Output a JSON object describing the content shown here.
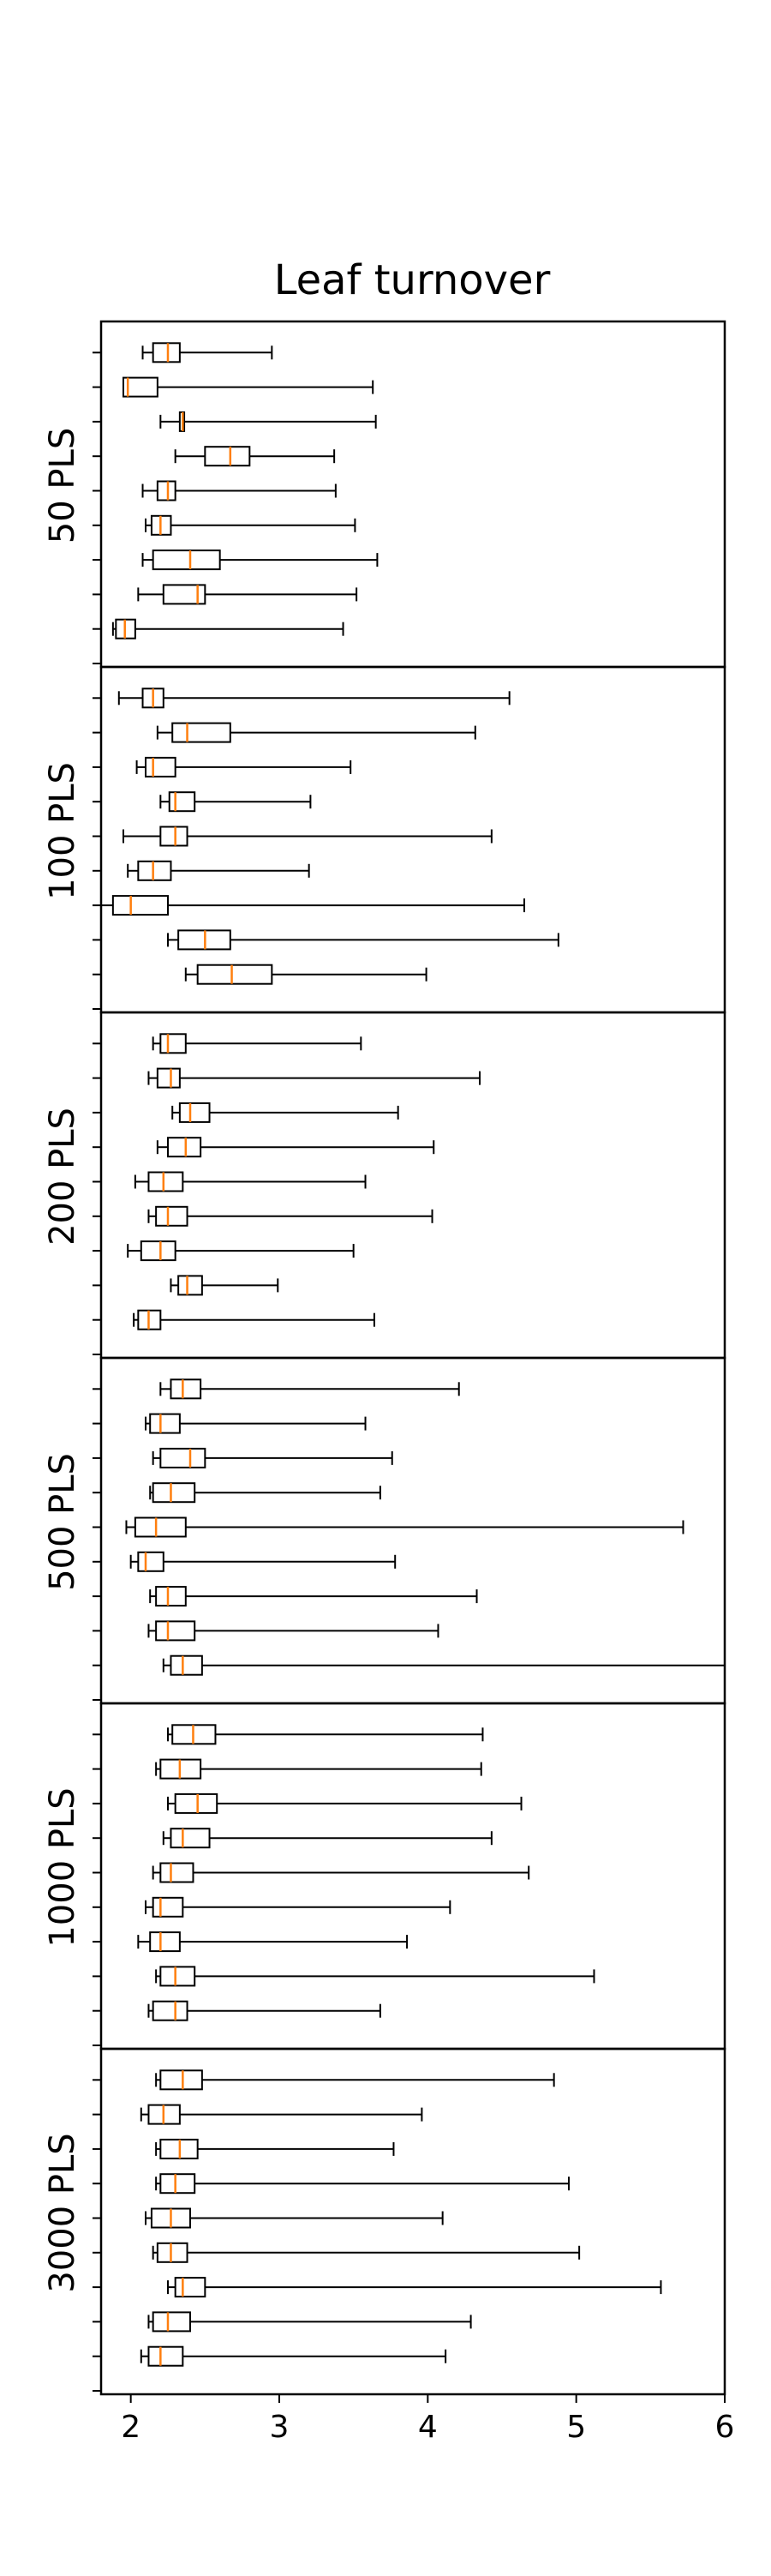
{
  "chart_data": {
    "type": "boxplot",
    "title": "Leaf turnover",
    "xlim": [
      1.8,
      6.0
    ],
    "x_ticks": [
      2,
      3,
      4,
      5,
      6
    ],
    "x_tick_labels": [
      "2",
      "3",
      "4",
      "5",
      "6"
    ],
    "panels": [
      {
        "label": "50 PLS",
        "boxes": [
          {
            "min": 2.08,
            "q1": 2.15,
            "median": 2.25,
            "q3": 2.33,
            "max": 2.95
          },
          {
            "min": 1.95,
            "q1": 1.95,
            "median": 1.98,
            "q3": 2.18,
            "max": 3.63
          },
          {
            "min": 2.2,
            "q1": 2.33,
            "median": 2.35,
            "q3": 2.36,
            "max": 3.65
          },
          {
            "min": 2.3,
            "q1": 2.5,
            "median": 2.67,
            "q3": 2.8,
            "max": 3.37
          },
          {
            "min": 2.08,
            "q1": 2.18,
            "median": 2.25,
            "q3": 2.3,
            "max": 3.38
          },
          {
            "min": 2.1,
            "q1": 2.14,
            "median": 2.2,
            "q3": 2.27,
            "max": 3.51
          },
          {
            "min": 2.08,
            "q1": 2.15,
            "median": 2.4,
            "q3": 2.6,
            "max": 3.66
          },
          {
            "min": 2.05,
            "q1": 2.22,
            "median": 2.45,
            "q3": 2.5,
            "max": 3.52
          },
          {
            "min": 1.88,
            "q1": 1.9,
            "median": 1.96,
            "q3": 2.03,
            "max": 3.43
          }
        ]
      },
      {
        "label": "100 PLS",
        "boxes": [
          {
            "min": 1.92,
            "q1": 2.08,
            "median": 2.15,
            "q3": 2.22,
            "max": 4.55
          },
          {
            "min": 2.18,
            "q1": 2.28,
            "median": 2.38,
            "q3": 2.67,
            "max": 4.32
          },
          {
            "min": 2.04,
            "q1": 2.1,
            "median": 2.15,
            "q3": 2.3,
            "max": 3.48
          },
          {
            "min": 2.2,
            "q1": 2.26,
            "median": 2.3,
            "q3": 2.43,
            "max": 3.21
          },
          {
            "min": 1.95,
            "q1": 2.2,
            "median": 2.3,
            "q3": 2.38,
            "max": 4.43
          },
          {
            "min": 1.98,
            "q1": 2.05,
            "median": 2.15,
            "q3": 2.27,
            "max": 3.2
          },
          {
            "min": 1.8,
            "q1": 1.88,
            "median": 2.0,
            "q3": 2.25,
            "max": 4.65
          },
          {
            "min": 2.25,
            "q1": 2.32,
            "median": 2.5,
            "q3": 2.67,
            "max": 4.88
          },
          {
            "min": 2.37,
            "q1": 2.45,
            "median": 2.68,
            "q3": 2.95,
            "max": 3.99
          }
        ]
      },
      {
        "label": "200 PLS",
        "boxes": [
          {
            "min": 2.15,
            "q1": 2.2,
            "median": 2.25,
            "q3": 2.37,
            "max": 3.55
          },
          {
            "min": 2.12,
            "q1": 2.18,
            "median": 2.27,
            "q3": 2.33,
            "max": 4.35
          },
          {
            "min": 2.28,
            "q1": 2.33,
            "median": 2.4,
            "q3": 2.53,
            "max": 3.8
          },
          {
            "min": 2.18,
            "q1": 2.25,
            "median": 2.37,
            "q3": 2.47,
            "max": 4.04
          },
          {
            "min": 2.03,
            "q1": 2.12,
            "median": 2.22,
            "q3": 2.35,
            "max": 3.58
          },
          {
            "min": 2.12,
            "q1": 2.17,
            "median": 2.25,
            "q3": 2.38,
            "max": 4.03
          },
          {
            "min": 1.98,
            "q1": 2.07,
            "median": 2.2,
            "q3": 2.3,
            "max": 3.5
          },
          {
            "min": 2.27,
            "q1": 2.32,
            "median": 2.38,
            "q3": 2.48,
            "max": 2.99
          },
          {
            "min": 2.02,
            "q1": 2.05,
            "median": 2.12,
            "q3": 2.2,
            "max": 3.64
          }
        ]
      },
      {
        "label": "500 PLS",
        "boxes": [
          {
            "min": 2.2,
            "q1": 2.27,
            "median": 2.35,
            "q3": 2.47,
            "max": 4.21
          },
          {
            "min": 2.1,
            "q1": 2.13,
            "median": 2.2,
            "q3": 2.33,
            "max": 3.58
          },
          {
            "min": 2.15,
            "q1": 2.2,
            "median": 2.4,
            "q3": 2.5,
            "max": 3.76
          },
          {
            "min": 2.13,
            "q1": 2.15,
            "median": 2.27,
            "q3": 2.43,
            "max": 3.68
          },
          {
            "min": 1.97,
            "q1": 2.03,
            "median": 2.17,
            "q3": 2.37,
            "max": 5.72
          },
          {
            "min": 2.0,
            "q1": 2.05,
            "median": 2.1,
            "q3": 2.22,
            "max": 3.78
          },
          {
            "min": 2.13,
            "q1": 2.17,
            "median": 2.25,
            "q3": 2.37,
            "max": 4.33
          },
          {
            "min": 2.12,
            "q1": 2.17,
            "median": 2.25,
            "q3": 2.43,
            "max": 4.07
          },
          {
            "min": 2.22,
            "q1": 2.27,
            "median": 2.35,
            "q3": 2.48,
            "max": 6.0
          }
        ]
      },
      {
        "label": "1000 PLS",
        "boxes": [
          {
            "min": 2.25,
            "q1": 2.28,
            "median": 2.42,
            "q3": 2.57,
            "max": 4.37
          },
          {
            "min": 2.17,
            "q1": 2.2,
            "median": 2.33,
            "q3": 2.47,
            "max": 4.36
          },
          {
            "min": 2.25,
            "q1": 2.3,
            "median": 2.45,
            "q3": 2.58,
            "max": 4.63
          },
          {
            "min": 2.22,
            "q1": 2.27,
            "median": 2.35,
            "q3": 2.53,
            "max": 4.43
          },
          {
            "min": 2.15,
            "q1": 2.2,
            "median": 2.27,
            "q3": 2.42,
            "max": 4.68
          },
          {
            "min": 2.1,
            "q1": 2.15,
            "median": 2.2,
            "q3": 2.35,
            "max": 4.15
          },
          {
            "min": 2.05,
            "q1": 2.13,
            "median": 2.2,
            "q3": 2.33,
            "max": 3.86
          },
          {
            "min": 2.17,
            "q1": 2.2,
            "median": 2.3,
            "q3": 2.43,
            "max": 5.12
          },
          {
            "min": 2.12,
            "q1": 2.15,
            "median": 2.3,
            "q3": 2.38,
            "max": 3.68
          }
        ]
      },
      {
        "label": "3000 PLS",
        "boxes": [
          {
            "min": 2.17,
            "q1": 2.2,
            "median": 2.35,
            "q3": 2.48,
            "max": 4.85
          },
          {
            "min": 2.07,
            "q1": 2.12,
            "median": 2.22,
            "q3": 2.33,
            "max": 3.96
          },
          {
            "min": 2.17,
            "q1": 2.2,
            "median": 2.33,
            "q3": 2.45,
            "max": 3.77
          },
          {
            "min": 2.17,
            "q1": 2.2,
            "median": 2.3,
            "q3": 2.43,
            "max": 4.95
          },
          {
            "min": 2.1,
            "q1": 2.14,
            "median": 2.27,
            "q3": 2.4,
            "max": 4.1
          },
          {
            "min": 2.15,
            "q1": 2.18,
            "median": 2.27,
            "q3": 2.38,
            "max": 5.02
          },
          {
            "min": 2.25,
            "q1": 2.3,
            "median": 2.35,
            "q3": 2.5,
            "max": 5.57
          },
          {
            "min": 2.12,
            "q1": 2.15,
            "median": 2.25,
            "q3": 2.4,
            "max": 4.29
          },
          {
            "min": 2.07,
            "q1": 2.12,
            "median": 2.2,
            "q3": 2.35,
            "max": 4.12
          }
        ]
      }
    ],
    "colors": {
      "box": "#000000",
      "median": "#ff7f0e",
      "background": "#ffffff"
    },
    "grid": false,
    "legend": "none"
  }
}
